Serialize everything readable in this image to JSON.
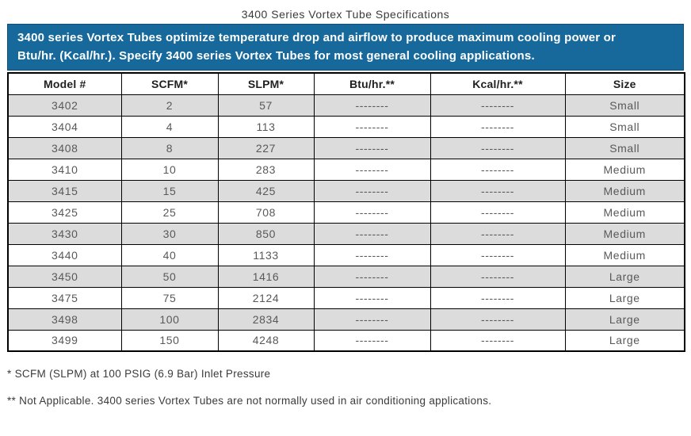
{
  "page": {
    "title": "3400 Series Vortex Tube Specifications"
  },
  "banner": {
    "lines": [
      "3400 series Vortex Tubes optimize temperature drop and airflow to produce maximum cooling power or",
      "Btu/hr. (Kcal/hr.). Specify 3400 series Vortex Tubes for most general cooling applications."
    ],
    "background_color": "#17699C",
    "text_color": "#FFFFFF"
  },
  "table": {
    "columns": [
      "Model #",
      "SCFM*",
      "SLPM*",
      "Btu/hr.**",
      "Kcal/hr.**",
      "Size"
    ],
    "column_keys": [
      "model",
      "scfm",
      "slpm",
      "btu",
      "kcal",
      "size"
    ],
    "stripe_color": "#DCDCDC",
    "rows": [
      [
        "3402",
        "2",
        "57",
        "--------",
        "--------",
        "Small"
      ],
      [
        "3404",
        "4",
        "113",
        "--------",
        "--------",
        "Small"
      ],
      [
        "3408",
        "8",
        "227",
        "--------",
        "--------",
        "Small"
      ],
      [
        "3410",
        "10",
        "283",
        "--------",
        "--------",
        "Medium"
      ],
      [
        "3415",
        "15",
        "425",
        "--------",
        "--------",
        "Medium"
      ],
      [
        "3425",
        "25",
        "708",
        "--------",
        "--------",
        "Medium"
      ],
      [
        "3430",
        "30",
        "850",
        "--------",
        "--------",
        "Medium"
      ],
      [
        "3440",
        "40",
        "1133",
        "--------",
        "--------",
        "Medium"
      ],
      [
        "3450",
        "50",
        "1416",
        "--------",
        "--------",
        "Large"
      ],
      [
        "3475",
        "75",
        "2124",
        "--------",
        "--------",
        "Large"
      ],
      [
        "3498",
        "100",
        "2834",
        "--------",
        "--------",
        "Large"
      ],
      [
        "3499",
        "150",
        "4248",
        "--------",
        "--------",
        "Large"
      ]
    ]
  },
  "footnotes": [
    "* SCFM (SLPM) at 100 PSIG (6.9 Bar) Inlet Pressure",
    "** Not Applicable. 3400 series Vortex Tubes are not normally used in air conditioning applications."
  ]
}
